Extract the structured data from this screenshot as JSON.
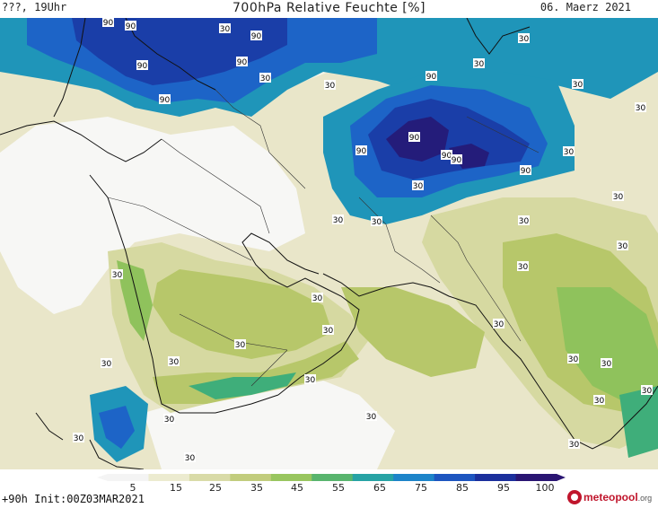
{
  "header": {
    "left": "???, 19Uhr",
    "title": "700hPa Relative Feuchte [%]",
    "date": "06. Maerz 2021"
  },
  "map": {
    "contour_label": "30",
    "high_label": "90",
    "colors": {
      "sea_land_pale": "#f3f5e8",
      "dry": "#f7f7f5",
      "c15": "#e9e6c9",
      "c25": "#d6d9a1",
      "c35": "#b7c76a",
      "c45": "#8fc25c",
      "c55": "#3fae7a",
      "c65": "#1f95b9",
      "c75": "#1d64c7",
      "c85": "#1a3ea8",
      "c95": "#241c7a",
      "coast": "#111111",
      "border": "#333333"
    }
  },
  "colorbar": {
    "ticks": [
      "5",
      "15",
      "25",
      "35",
      "45",
      "55",
      "65",
      "75",
      "85",
      "95",
      "100"
    ],
    "colors": [
      "#f4f4f4",
      "#ecebd0",
      "#d9dba8",
      "#c2cd7e",
      "#99c660",
      "#59b56e",
      "#27a3a5",
      "#1d84c9",
      "#1d55c0",
      "#1b2f9c",
      "#2a1573"
    ]
  },
  "footer": {
    "run_info": "+90h Init:00Z03MAR2021",
    "brand": "meteopool",
    "brand_tld": ".org"
  }
}
